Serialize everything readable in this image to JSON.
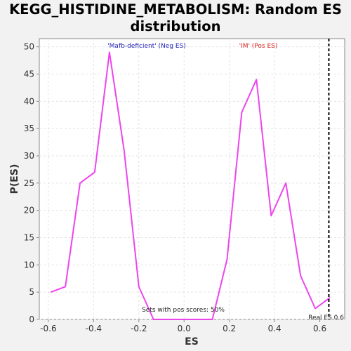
{
  "chart_data": {
    "type": "line",
    "title_line1": "KEGG_HISTIDINE_METABOLISM: Random ES",
    "title_line2": "distribution",
    "xlabel": "ES",
    "ylabel": "P(ES)",
    "xlim": [
      -0.64,
      0.71
    ],
    "ylim": [
      0,
      51.5
    ],
    "xticks": [
      -0.6,
      -0.4,
      -0.2,
      0.0,
      0.2,
      0.4,
      0.6
    ],
    "xtick_labels": [
      "-0.6",
      "-0.4",
      "-0.2",
      "0.0",
      "0.2",
      "0.4",
      "0.6"
    ],
    "yticks": [
      0,
      5,
      10,
      15,
      20,
      25,
      30,
      35,
      40,
      45,
      50
    ],
    "ytick_labels": [
      "0",
      "5",
      "10",
      "15",
      "20",
      "25",
      "30",
      "35",
      "40",
      "45",
      "50"
    ],
    "grid": true,
    "series": [
      {
        "color": "#ee44ee",
        "x": [
          -0.59,
          -0.525,
          -0.46,
          -0.395,
          -0.33,
          -0.265,
          -0.2,
          -0.135,
          -0.07,
          -0.005,
          0.06,
          0.125,
          0.19,
          0.255,
          0.32,
          0.385,
          0.45,
          0.515,
          0.58,
          0.645
        ],
        "y": [
          5,
          6,
          25,
          27,
          49,
          31,
          6,
          0,
          0,
          0,
          0,
          0,
          11,
          38,
          44,
          19,
          25,
          8,
          2,
          4
        ]
      }
    ],
    "real_es": 0.64,
    "real_es_label": "Real ES 0.6",
    "neg_label": "'Mafb-deficient' (Neg ES)",
    "neg_label_color": "#2222bb",
    "pos_label": "'IM' (Pos ES)",
    "pos_label_color": "#dd2222",
    "footnote": "Sets with pos scores: 50%"
  }
}
